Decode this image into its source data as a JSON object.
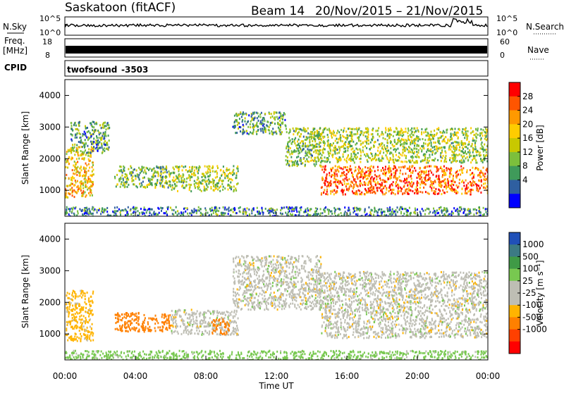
{
  "header": {
    "title": "Saskatoon (fitACF)",
    "beam": "Beam 14",
    "date_range": "20/Nov/2015 – 21/Nov/2015"
  },
  "nsky_panel": {
    "left_label": "N.Sky",
    "right_label": "N.Search",
    "left_ticks": [
      "10^5",
      "10^0"
    ],
    "right_ticks": [
      "10^5",
      "10^0"
    ]
  },
  "freq_panel": {
    "left_label_1": "Freq.",
    "left_label_2": "[MHz]",
    "left_ticks": [
      "18",
      "8"
    ],
    "right_ticks": [
      "60",
      "0"
    ],
    "right_label": "Nave"
  },
  "cpid_panel": {
    "left_label": "CPID",
    "program": "twofsound",
    "cpid": "-3503"
  },
  "power_colorbar": {
    "label": "Power [dB]",
    "ticks": [
      "28",
      "24",
      "20",
      "16",
      "12",
      "8",
      "4"
    ],
    "colors": [
      "#ff0000",
      "#ff5500",
      "#ff9900",
      "#ffcc00",
      "#c8c800",
      "#7cbf3c",
      "#3f9a5a",
      "#2f5fa0",
      "#0000ff"
    ]
  },
  "velocity_colorbar": {
    "label": "Velocity [m s⁻¹]",
    "ticks": [
      "1000",
      "500",
      "100",
      "25",
      "-25",
      "-100",
      "-500",
      "-1000"
    ],
    "colors": [
      "#2050b8",
      "#3c7a84",
      "#3f9a46",
      "#78c850",
      "#bebeb4",
      "#bebeb4",
      "#ffb400",
      "#ff8000",
      "#ff4000",
      "#ff0000"
    ]
  },
  "chart_data": {
    "type": "heatmap",
    "xlabel": "Time UT",
    "ylabel": "Slant Range [km]",
    "x_ticks": [
      "00:00",
      "04:00",
      "08:00",
      "12:00",
      "16:00",
      "20:00",
      "00:00"
    ],
    "xlim_hours": [
      0,
      24
    ],
    "ylim_km": [
      180,
      4500
    ],
    "y_ticks": [
      1000,
      2000,
      3000,
      4000
    ],
    "power_regions": [
      {
        "t0": 0.0,
        "t1": 1.6,
        "r0": 800,
        "r1": 2400,
        "power": 20
      },
      {
        "t0": 0.3,
        "t1": 2.5,
        "r0": 2200,
        "r1": 3200,
        "power": 10
      },
      {
        "t0": 2.8,
        "t1": 6.0,
        "r0": 1100,
        "r1": 1800,
        "power": 12
      },
      {
        "t0": 6.0,
        "t1": 9.8,
        "r0": 1000,
        "r1": 1800,
        "power": 14
      },
      {
        "t0": 9.5,
        "t1": 12.5,
        "r0": 2800,
        "r1": 3500,
        "power": 10
      },
      {
        "t0": 12.5,
        "t1": 14.5,
        "r0": 1800,
        "r1": 3000,
        "power": 12
      },
      {
        "t0": 14.5,
        "t1": 24.0,
        "r0": 900,
        "r1": 1800,
        "power": 26
      },
      {
        "t0": 14.0,
        "t1": 24.0,
        "r0": 1900,
        "r1": 3000,
        "power": 14
      },
      {
        "t0": 0.0,
        "t1": 24.0,
        "r0": 200,
        "r1": 500,
        "power": 8
      }
    ],
    "velocity_regions": [
      {
        "t0": 0.0,
        "t1": 1.6,
        "r0": 800,
        "r1": 2400,
        "velocity": -50
      },
      {
        "t0": 2.8,
        "t1": 6.0,
        "r0": 1100,
        "r1": 1700,
        "velocity": -150
      },
      {
        "t0": 6.0,
        "t1": 9.8,
        "r0": 1000,
        "r1": 1800,
        "velocity": 0
      },
      {
        "t0": 8.3,
        "t1": 9.3,
        "r0": 1000,
        "r1": 1500,
        "velocity": -300
      },
      {
        "t0": 9.5,
        "t1": 14.5,
        "r0": 1800,
        "r1": 3500,
        "velocity": 0
      },
      {
        "t0": 14.5,
        "t1": 24.0,
        "r0": 900,
        "r1": 2000,
        "velocity": 0
      },
      {
        "t0": 14.0,
        "t1": 24.0,
        "r0": 2000,
        "r1": 3000,
        "velocity": 0
      },
      {
        "t0": 0.0,
        "t1": 24.0,
        "r0": 200,
        "r1": 500,
        "velocity": 50
      }
    ]
  }
}
